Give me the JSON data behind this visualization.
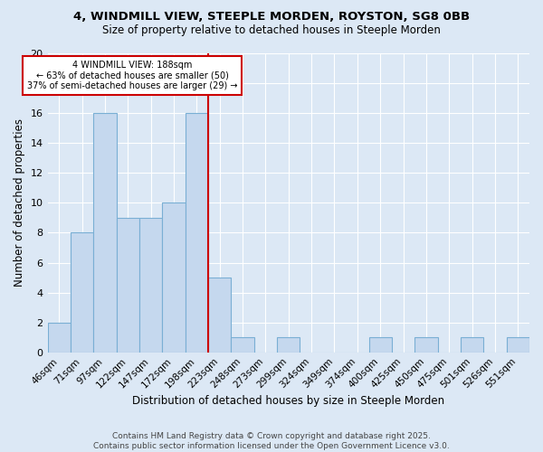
{
  "title1": "4, WINDMILL VIEW, STEEPLE MORDEN, ROYSTON, SG8 0BB",
  "title2": "Size of property relative to detached houses in Steeple Morden",
  "xlabel": "Distribution of detached houses by size in Steeple Morden",
  "ylabel": "Number of detached properties",
  "categories": [
    "46sqm",
    "71sqm",
    "97sqm",
    "122sqm",
    "147sqm",
    "172sqm",
    "198sqm",
    "223sqm",
    "248sqm",
    "273sqm",
    "299sqm",
    "324sqm",
    "349sqm",
    "374sqm",
    "400sqm",
    "425sqm",
    "450sqm",
    "475sqm",
    "501sqm",
    "526sqm",
    "551sqm"
  ],
  "values": [
    2,
    8,
    16,
    9,
    9,
    10,
    16,
    5,
    1,
    0,
    1,
    0,
    0,
    0,
    1,
    0,
    1,
    0,
    1,
    0,
    1
  ],
  "bar_color": "#c5d8ee",
  "bar_edge_color": "#7aafd4",
  "vline_x": 6.5,
  "vline_color": "#cc0000",
  "annotation_text": "4 WINDMILL VIEW: 188sqm\n← 63% of detached houses are smaller (50)\n37% of semi-detached houses are larger (29) →",
  "annotation_box_color": "#ffffff",
  "annotation_box_edge": "#cc0000",
  "ylim": [
    0,
    20
  ],
  "yticks": [
    0,
    2,
    4,
    6,
    8,
    10,
    12,
    14,
    16,
    18,
    20
  ],
  "footer": "Contains HM Land Registry data © Crown copyright and database right 2025.\nContains public sector information licensed under the Open Government Licence v3.0.",
  "background_color": "#dce8f5",
  "plot_bg_color": "#dce8f5",
  "grid_color": "#ffffff"
}
